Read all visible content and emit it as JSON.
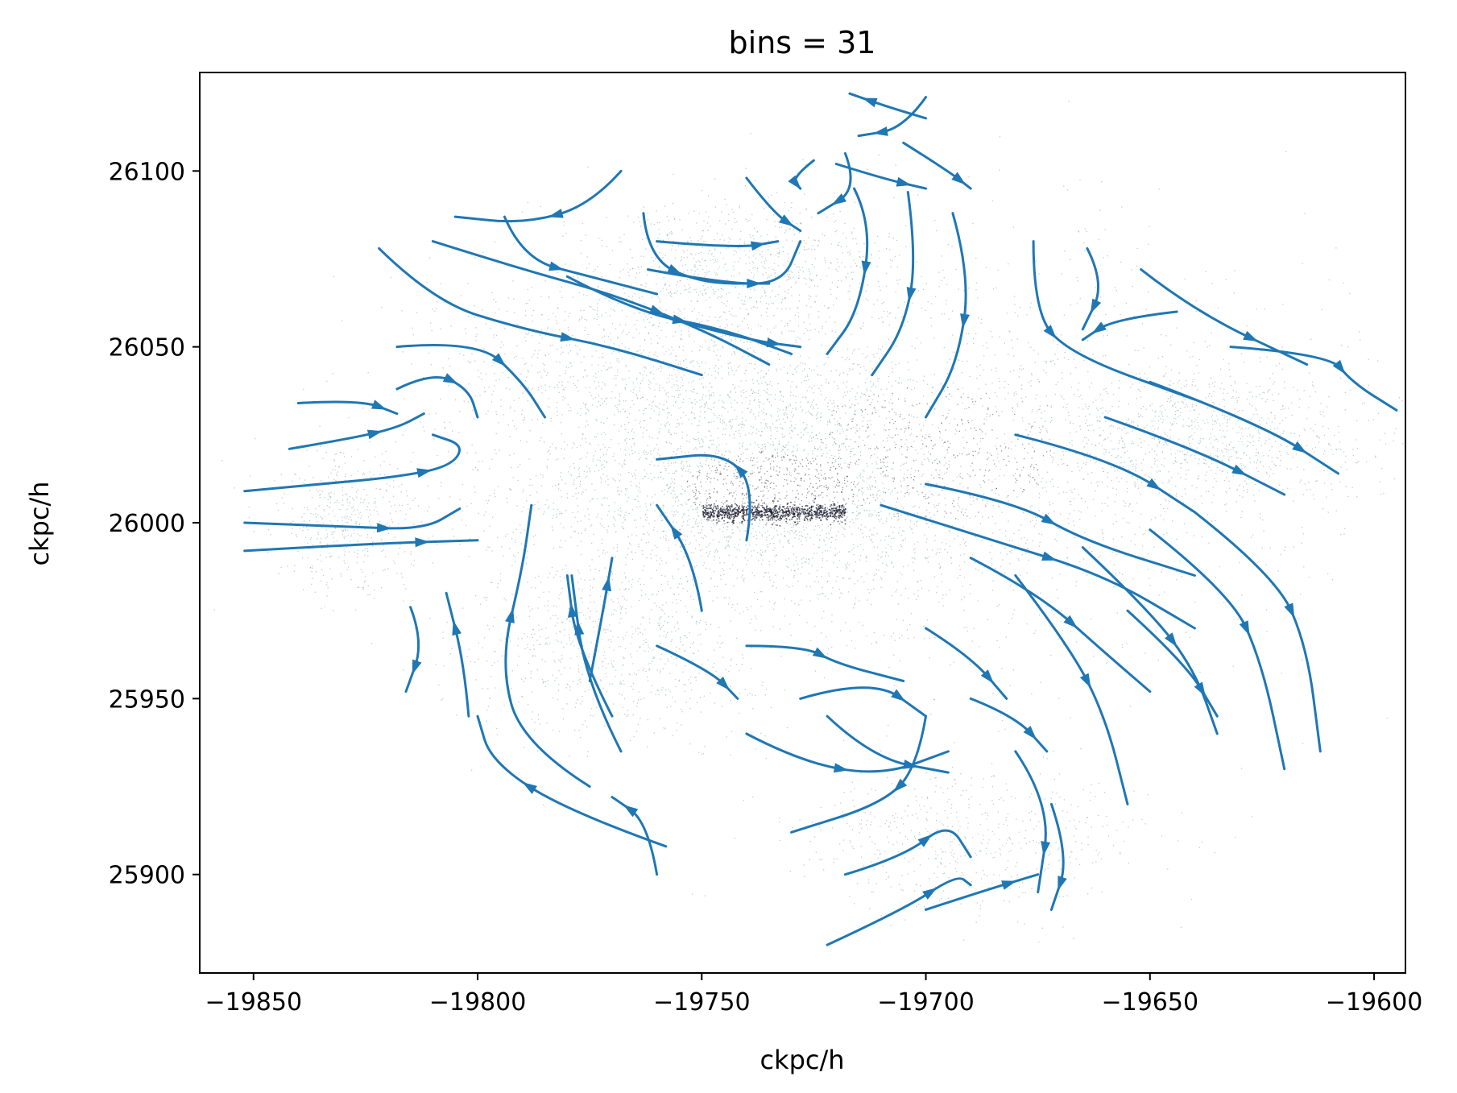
{
  "chart_data": {
    "type": "scatter",
    "title": "bins = 31",
    "xlabel": "ckpc/h",
    "ylabel": "ckpc/h",
    "xlim": [
      -19862,
      -19593
    ],
    "ylim": [
      25872,
      26128
    ],
    "xticks": [
      -19850,
      -19800,
      -19750,
      -19700,
      -19650,
      -19600
    ],
    "xtick_labels": [
      "−19850",
      "−19800",
      "−19750",
      "−19700",
      "−19650",
      "−19600"
    ],
    "yticks": [
      25900,
      25950,
      26000,
      26050,
      26100
    ],
    "ytick_labels": [
      "25900",
      "25950",
      "26000",
      "26050",
      "26100"
    ],
    "grid": false,
    "legend": "none",
    "colors": {
      "stream": "#1f77b4",
      "particles_light": "#8aa3a8",
      "particles_dark": "#1b1b2e",
      "axes": "#000000"
    },
    "particle_clouds": [
      {
        "cx": -19735,
        "cy": 26010,
        "sx": 55,
        "sy": 30,
        "weight": 0.3
      },
      {
        "cx": -19700,
        "cy": 26020,
        "sx": 80,
        "sy": 55,
        "weight": 0.22
      },
      {
        "cx": -19640,
        "cy": 26025,
        "sx": 35,
        "sy": 18,
        "weight": 0.1
      },
      {
        "cx": -19760,
        "cy": 26045,
        "sx": 45,
        "sy": 25,
        "weight": 0.12
      },
      {
        "cx": -19770,
        "cy": 25965,
        "sx": 30,
        "sy": 25,
        "weight": 0.08
      },
      {
        "cx": -19690,
        "cy": 25910,
        "sx": 35,
        "sy": 18,
        "weight": 0.06
      },
      {
        "cx": -19830,
        "cy": 26000,
        "sx": 14,
        "sy": 18,
        "weight": 0.05
      },
      {
        "cx": -19740,
        "cy": 26075,
        "sx": 30,
        "sy": 15,
        "weight": 0.07
      }
    ],
    "dense_core": {
      "x0": -19750,
      "x1": -19718,
      "y": 26003,
      "sigma": 1.2
    },
    "streamlines": [
      [
        [
          -19852,
          26009
        ],
        [
          -19835,
          26011
        ],
        [
          -19818,
          26013
        ],
        [
          -19806,
          26016
        ],
        [
          -19803,
          26022
        ],
        [
          -19810,
          26025
        ]
      ],
      [
        [
          -19852,
          26000
        ],
        [
          -19830,
          25999
        ],
        [
          -19812,
          25998
        ],
        [
          -19804,
          26004
        ]
      ],
      [
        [
          -19852,
          25992
        ],
        [
          -19825,
          25994
        ],
        [
          -19800,
          25995
        ]
      ],
      [
        [
          -19842,
          26021
        ],
        [
          -19828,
          26024
        ],
        [
          -19818,
          26027
        ],
        [
          -19812,
          26031
        ]
      ],
      [
        [
          -19840,
          26034
        ],
        [
          -19826,
          26035
        ],
        [
          -19818,
          26031
        ]
      ],
      [
        [
          -19818,
          26038
        ],
        [
          -19810,
          26043
        ],
        [
          -19802,
          26038
        ],
        [
          -19800,
          26030
        ]
      ],
      [
        [
          -19815,
          25976
        ],
        [
          -19812,
          25966
        ],
        [
          -19816,
          25952
        ]
      ],
      [
        [
          -19802,
          25945
        ],
        [
          -19803,
          25960
        ],
        [
          -19807,
          25980
        ]
      ],
      [
        [
          -19775,
          25925
        ],
        [
          -19790,
          25937
        ],
        [
          -19795,
          25960
        ],
        [
          -19790,
          25987
        ],
        [
          -19788,
          26005
        ]
      ],
      [
        [
          -19758,
          25908
        ],
        [
          -19780,
          25918
        ],
        [
          -19797,
          25932
        ],
        [
          -19800,
          25945
        ]
      ],
      [
        [
          -19768,
          25935
        ],
        [
          -19776,
          25955
        ],
        [
          -19779,
          25985
        ]
      ],
      [
        [
          -19775,
          25955
        ],
        [
          -19772,
          25975
        ],
        [
          -19770,
          25990
        ]
      ],
      [
        [
          -19770,
          25945
        ],
        [
          -19778,
          25965
        ],
        [
          -19780,
          25985
        ]
      ],
      [
        [
          -19760,
          25900
        ],
        [
          -19762,
          25915
        ],
        [
          -19770,
          25922
        ]
      ],
      [
        [
          -19760,
          25965
        ],
        [
          -19748,
          25958
        ],
        [
          -19742,
          25950
        ]
      ],
      [
        [
          -19750,
          25975
        ],
        [
          -19752,
          25990
        ],
        [
          -19760,
          26005
        ]
      ],
      [
        [
          -19740,
          25995
        ],
        [
          -19738,
          26010
        ],
        [
          -19745,
          26020
        ],
        [
          -19760,
          26018
        ]
      ],
      [
        [
          -19818,
          26050
        ],
        [
          -19800,
          26052
        ],
        [
          -19790,
          26040
        ],
        [
          -19785,
          26030
        ]
      ],
      [
        [
          -19822,
          26078
        ],
        [
          -19810,
          26063
        ],
        [
          -19790,
          26055
        ],
        [
          -19770,
          26050
        ],
        [
          -19750,
          26042
        ]
      ],
      [
        [
          -19810,
          26080
        ],
        [
          -19790,
          26072
        ],
        [
          -19770,
          26065
        ],
        [
          -19750,
          26055
        ],
        [
          -19735,
          26045
        ]
      ],
      [
        [
          -19780,
          26070
        ],
        [
          -19765,
          26060
        ],
        [
          -19745,
          26055
        ],
        [
          -19730,
          26048
        ]
      ],
      [
        [
          -19757,
          26058
        ],
        [
          -19740,
          26052
        ],
        [
          -19728,
          26050
        ]
      ],
      [
        [
          -19762,
          26072
        ],
        [
          -19745,
          26068
        ],
        [
          -19732,
          26068
        ],
        [
          -19728,
          26080
        ]
      ],
      [
        [
          -19760,
          26080
        ],
        [
          -19742,
          26078
        ],
        [
          -19733,
          26080
        ]
      ],
      [
        [
          -19794,
          26087
        ],
        [
          -19790,
          26075
        ],
        [
          -19775,
          26070
        ],
        [
          -19760,
          26065
        ]
      ],
      [
        [
          -19768,
          26100
        ],
        [
          -19775,
          26090
        ],
        [
          -19790,
          26085
        ],
        [
          -19805,
          26087
        ]
      ],
      [
        [
          -19763,
          26088
        ],
        [
          -19762,
          26075
        ],
        [
          -19750,
          26068
        ],
        [
          -19735,
          26068
        ]
      ],
      [
        [
          -19740,
          26098
        ],
        [
          -19734,
          26088
        ],
        [
          -19728,
          26083
        ]
      ],
      [
        [
          -19718,
          26105
        ],
        [
          -19715,
          26095
        ],
        [
          -19724,
          26088
        ]
      ],
      [
        [
          -19725,
          26103
        ],
        [
          -19730,
          26098
        ],
        [
          -19728,
          26095
        ]
      ],
      [
        [
          -19700,
          26121
        ],
        [
          -19705,
          26112
        ],
        [
          -19715,
          26110
        ]
      ],
      [
        [
          -19700,
          26115
        ],
        [
          -19708,
          26118
        ],
        [
          -19717,
          26122
        ]
      ],
      [
        [
          -19705,
          26108
        ],
        [
          -19695,
          26100
        ],
        [
          -19690,
          26095
        ]
      ],
      [
        [
          -19720,
          26102
        ],
        [
          -19710,
          26098
        ],
        [
          -19700,
          26095
        ]
      ],
      [
        [
          -19716,
          26095
        ],
        [
          -19712,
          26085
        ],
        [
          -19715,
          26060
        ],
        [
          -19722,
          26048
        ]
      ],
      [
        [
          -19704,
          26094
        ],
        [
          -19702,
          26075
        ],
        [
          -19705,
          26055
        ],
        [
          -19712,
          26042
        ]
      ],
      [
        [
          -19694,
          26088
        ],
        [
          -19690,
          26070
        ],
        [
          -19693,
          26045
        ],
        [
          -19700,
          26030
        ]
      ],
      [
        [
          -19676,
          26080
        ],
        [
          -19676,
          26060
        ],
        [
          -19668,
          26048
        ],
        [
          -19640,
          26035
        ]
      ],
      [
        [
          -19664,
          26078
        ],
        [
          -19660,
          26068
        ],
        [
          -19665,
          26055
        ]
      ],
      [
        [
          -19652,
          26072
        ],
        [
          -19640,
          26060
        ],
        [
          -19615,
          26045
        ]
      ],
      [
        [
          -19644,
          26060
        ],
        [
          -19658,
          26058
        ],
        [
          -19665,
          26052
        ]
      ],
      [
        [
          -19632,
          26050
        ],
        [
          -19610,
          26048
        ],
        [
          -19605,
          26040
        ],
        [
          -19595,
          26032
        ]
      ],
      [
        [
          -19650,
          26040
        ],
        [
          -19625,
          26028
        ],
        [
          -19608,
          26014
        ]
      ],
      [
        [
          -19660,
          26030
        ],
        [
          -19640,
          26021
        ],
        [
          -19620,
          26008
        ]
      ],
      [
        [
          -19680,
          26025
        ],
        [
          -19658,
          26018
        ],
        [
          -19640,
          26003
        ]
      ],
      [
        [
          -19700,
          26011
        ],
        [
          -19680,
          26006
        ],
        [
          -19665,
          25995
        ],
        [
          -19640,
          25985
        ]
      ],
      [
        [
          -19710,
          26005
        ],
        [
          -19685,
          25995
        ],
        [
          -19660,
          25985
        ],
        [
          -19640,
          25970
        ]
      ],
      [
        [
          -19690,
          25990
        ],
        [
          -19675,
          25980
        ],
        [
          -19660,
          25963
        ],
        [
          -19650,
          25952
        ]
      ],
      [
        [
          -19680,
          25985
        ],
        [
          -19668,
          25965
        ],
        [
          -19660,
          25945
        ],
        [
          -19655,
          25920
        ]
      ],
      [
        [
          -19665,
          25993
        ],
        [
          -19650,
          25975
        ],
        [
          -19640,
          25958
        ],
        [
          -19635,
          25940
        ]
      ],
      [
        [
          -19650,
          25998
        ],
        [
          -19632,
          25980
        ],
        [
          -19625,
          25960
        ],
        [
          -19620,
          25930
        ]
      ],
      [
        [
          -19640,
          26003
        ],
        [
          -19622,
          25985
        ],
        [
          -19615,
          25965
        ],
        [
          -19612,
          25935
        ]
      ],
      [
        [
          -19700,
          25945
        ],
        [
          -19702,
          25930
        ],
        [
          -19710,
          25920
        ],
        [
          -19730,
          25912
        ]
      ],
      [
        [
          -19718,
          25900
        ],
        [
          -19705,
          25905
        ],
        [
          -19695,
          25915
        ],
        [
          -19690,
          25905
        ]
      ],
      [
        [
          -19722,
          25945
        ],
        [
          -19712,
          25933
        ],
        [
          -19695,
          25929
        ]
      ],
      [
        [
          -19728,
          25950
        ],
        [
          -19712,
          25956
        ],
        [
          -19700,
          25945
        ]
      ],
      [
        [
          -19690,
          25950
        ],
        [
          -19680,
          25945
        ],
        [
          -19673,
          25935
        ]
      ],
      [
        [
          -19680,
          25935
        ],
        [
          -19672,
          25920
        ],
        [
          -19675,
          25895
        ]
      ],
      [
        [
          -19672,
          25920
        ],
        [
          -19668,
          25905
        ],
        [
          -19672,
          25890
        ]
      ],
      [
        [
          -19700,
          25890
        ],
        [
          -19688,
          25895
        ],
        [
          -19675,
          25900
        ]
      ],
      [
        [
          -19722,
          25880
        ],
        [
          -19705,
          25890
        ],
        [
          -19693,
          25900
        ],
        [
          -19690,
          25897
        ]
      ],
      [
        [
          -19740,
          25965
        ],
        [
          -19727,
          25965
        ],
        [
          -19720,
          25960
        ],
        [
          -19705,
          25955
        ]
      ],
      [
        [
          -19740,
          25940
        ],
        [
          -19728,
          25932
        ],
        [
          -19710,
          25928
        ],
        [
          -19695,
          25935
        ]
      ],
      [
        [
          -19700,
          25970
        ],
        [
          -19690,
          25962
        ],
        [
          -19682,
          25950
        ]
      ],
      [
        [
          -19655,
          25975
        ],
        [
          -19642,
          25960
        ],
        [
          -19635,
          25945
        ]
      ]
    ]
  }
}
